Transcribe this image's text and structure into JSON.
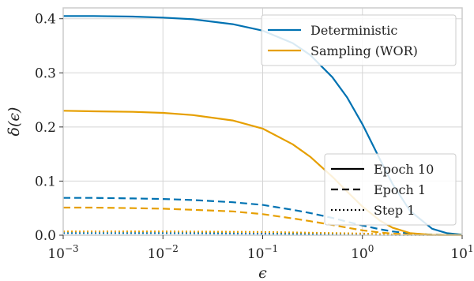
{
  "chart_data": {
    "type": "line",
    "xlabel": "ϵ",
    "ylabel": "δ(ϵ)",
    "xscale": "log",
    "xlim": [
      0.001,
      10
    ],
    "ylim": [
      0,
      0.42
    ],
    "grid": true,
    "x_ticks": [
      {
        "value": 0.001,
        "base": "10",
        "exp": "−3"
      },
      {
        "value": 0.01,
        "base": "10",
        "exp": "−2"
      },
      {
        "value": 0.1,
        "base": "10",
        "exp": "−1"
      },
      {
        "value": 1,
        "base": "10",
        "exp": "0"
      },
      {
        "value": 10,
        "base": "10",
        "exp": "1"
      }
    ],
    "y_ticks": [
      "0.0",
      "0.1",
      "0.2",
      "0.3",
      "0.4"
    ],
    "colors": {
      "deterministic": "#0072b2",
      "sampling": "#e69f00",
      "legend_line": "#000000"
    },
    "legend_methods": {
      "placement": "top-right",
      "entries": [
        {
          "label": "Deterministic",
          "color": "#0072b2"
        },
        {
          "label": "Sampling (WOR)",
          "color": "#e69f00"
        }
      ]
    },
    "legend_styles": {
      "placement": "lower-right",
      "entries": [
        {
          "label": "Epoch 10",
          "dash": "solid"
        },
        {
          "label": "Epoch 1",
          "dash": "dashed"
        },
        {
          "label": "Step 1",
          "dash": "dotted"
        }
      ]
    },
    "series": [
      {
        "method": "Deterministic",
        "style": "solid",
        "color": "#0072b2",
        "x": [
          0.001,
          0.002,
          0.005,
          0.01,
          0.02,
          0.05,
          0.1,
          0.2,
          0.3,
          0.5,
          0.7,
          1,
          1.5,
          2,
          3,
          5,
          7,
          10
        ],
        "y": [
          0.405,
          0.405,
          0.404,
          0.402,
          0.399,
          0.39,
          0.378,
          0.355,
          0.333,
          0.292,
          0.255,
          0.205,
          0.14,
          0.095,
          0.045,
          0.012,
          0.004,
          0.001
        ]
      },
      {
        "method": "Deterministic",
        "style": "dashed",
        "color": "#0072b2",
        "x": [
          0.001,
          0.002,
          0.005,
          0.01,
          0.02,
          0.05,
          0.1,
          0.2,
          0.3,
          0.5,
          0.7,
          1,
          1.5,
          2,
          3,
          5,
          7,
          10
        ],
        "y": [
          0.069,
          0.069,
          0.068,
          0.067,
          0.065,
          0.061,
          0.056,
          0.047,
          0.041,
          0.032,
          0.025,
          0.018,
          0.011,
          0.007,
          0.003,
          0.001,
          0.0005,
          0.0002
        ]
      },
      {
        "method": "Deterministic",
        "style": "dotted",
        "color": "#0072b2",
        "x": [
          0.001,
          0.01,
          0.1,
          0.5,
          1,
          2,
          5,
          10
        ],
        "y": [
          0.004,
          0.004,
          0.003,
          0.002,
          0.001,
          0.0005,
          0.0002,
          0.0001
        ]
      },
      {
        "method": "Sampling (WOR)",
        "style": "solid",
        "color": "#e69f00",
        "x": [
          0.001,
          0.002,
          0.005,
          0.01,
          0.02,
          0.05,
          0.1,
          0.2,
          0.3,
          0.5,
          0.7,
          1,
          1.5,
          2,
          3,
          5,
          7,
          10
        ],
        "y": [
          0.23,
          0.229,
          0.228,
          0.226,
          0.222,
          0.212,
          0.197,
          0.168,
          0.145,
          0.108,
          0.081,
          0.053,
          0.027,
          0.014,
          0.004,
          0.0006,
          0.0002,
          0.0001
        ]
      },
      {
        "method": "Sampling (WOR)",
        "style": "dashed",
        "color": "#e69f00",
        "x": [
          0.001,
          0.002,
          0.005,
          0.01,
          0.02,
          0.05,
          0.1,
          0.2,
          0.3,
          0.5,
          0.7,
          1,
          1.5,
          2,
          3,
          5,
          7,
          10
        ],
        "y": [
          0.051,
          0.051,
          0.05,
          0.049,
          0.047,
          0.044,
          0.039,
          0.031,
          0.026,
          0.019,
          0.014,
          0.009,
          0.005,
          0.003,
          0.001,
          0.0002,
          0.0001,
          0.0
        ]
      },
      {
        "method": "Sampling (WOR)",
        "style": "dotted",
        "color": "#e69f00",
        "x": [
          0.001,
          0.01,
          0.1,
          0.5,
          1,
          2,
          5,
          10
        ],
        "y": [
          0.007,
          0.007,
          0.006,
          0.004,
          0.003,
          0.001,
          0.0003,
          0.0001
        ]
      }
    ]
  }
}
